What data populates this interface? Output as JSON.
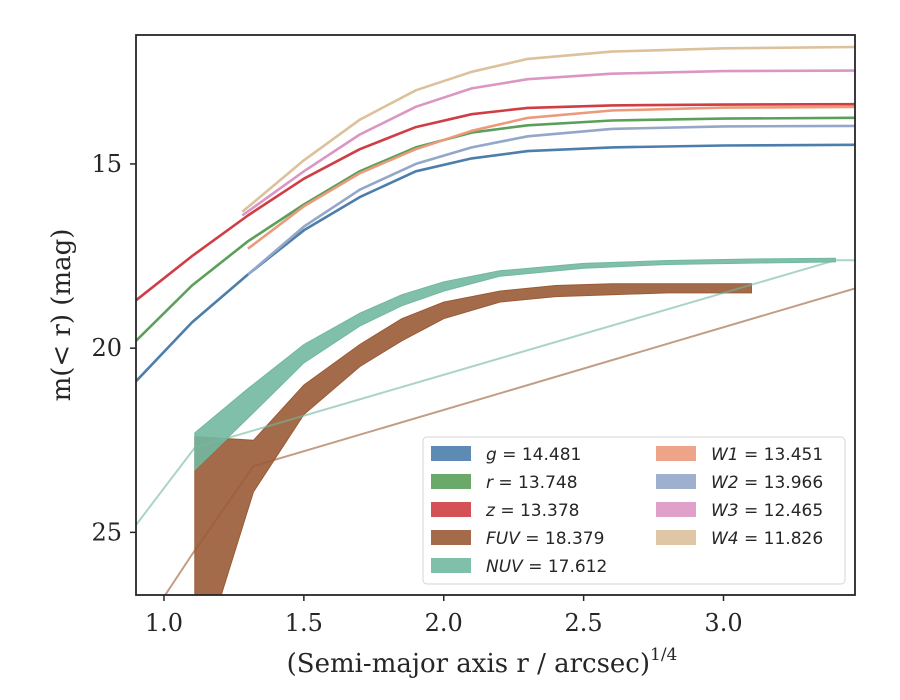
{
  "chart_data": {
    "type": "line",
    "xlabel": "(Semi-major axis r / arcsec)",
    "xlabel_exponent": "1/4",
    "ylabel": "m(< r) (mag)",
    "xlim": [
      0.9,
      3.47
    ],
    "ylim": [
      26.7,
      11.5
    ],
    "y_inverted": true,
    "grid": false,
    "legend_position": "lower-right",
    "x_ticks": [
      "1.0",
      "1.5",
      "2.0",
      "2.5",
      "3.0"
    ],
    "x_tick_values": [
      1.0,
      1.5,
      2.0,
      2.5,
      3.0
    ],
    "y_ticks": [
      "15",
      "20",
      "25"
    ],
    "y_tick_values": [
      15,
      20,
      25
    ],
    "series": [
      {
        "name": "g = 14.481",
        "prefix": "g",
        "value": "14.481",
        "color": "#4c7eab",
        "asym": 14.481,
        "x": [
          0.9,
          1.1,
          1.3,
          1.5,
          1.7,
          1.9,
          2.1,
          2.3,
          2.6,
          3.0,
          3.47
        ],
        "y": [
          20.9,
          19.3,
          18.0,
          16.8,
          15.9,
          15.2,
          14.85,
          14.65,
          14.55,
          14.5,
          14.481
        ],
        "band": 0.06
      },
      {
        "name": "r = 13.748",
        "prefix": "r",
        "value": "13.748",
        "color": "#5aa05a",
        "asym": 13.748,
        "x": [
          0.9,
          1.1,
          1.3,
          1.5,
          1.7,
          1.9,
          2.1,
          2.3,
          2.6,
          3.0,
          3.47
        ],
        "y": [
          19.8,
          18.3,
          17.1,
          16.1,
          15.2,
          14.55,
          14.15,
          13.95,
          13.82,
          13.77,
          13.748
        ],
        "band": 0.06
      },
      {
        "name": "z = 13.378",
        "prefix": "z",
        "value": "13.378",
        "color": "#cf3e44",
        "asym": 13.378,
        "x": [
          0.9,
          1.1,
          1.3,
          1.5,
          1.7,
          1.9,
          2.1,
          2.3,
          2.6,
          3.0,
          3.47
        ],
        "y": [
          18.7,
          17.5,
          16.4,
          15.4,
          14.6,
          14.0,
          13.65,
          13.48,
          13.41,
          13.39,
          13.378
        ],
        "band": 0.06
      },
      {
        "name": "W1 = 13.451",
        "prefix": "W1",
        "value": "13.451",
        "color": "#eb9a7b",
        "asym": 13.451,
        "x": [
          1.3,
          1.5,
          1.7,
          1.9,
          2.1,
          2.3,
          2.6,
          3.0,
          3.47
        ],
        "y": [
          17.3,
          16.15,
          15.25,
          14.6,
          14.1,
          13.75,
          13.55,
          13.47,
          13.451
        ],
        "band": 0.06
      },
      {
        "name": "W2 = 13.966",
        "prefix": "W2",
        "value": "13.966",
        "color": "#95a7c9",
        "asym": 13.966,
        "x": [
          1.3,
          1.5,
          1.7,
          1.9,
          2.1,
          2.3,
          2.6,
          3.0,
          3.47
        ],
        "y": [
          18.0,
          16.7,
          15.7,
          15.0,
          14.55,
          14.25,
          14.05,
          13.98,
          13.966
        ],
        "band": 0.06
      },
      {
        "name": "W3 = 12.465",
        "prefix": "W3",
        "value": "12.465",
        "color": "#dc96c4",
        "asym": 12.465,
        "x": [
          1.28,
          1.5,
          1.7,
          1.9,
          2.1,
          2.3,
          2.6,
          3.0,
          3.47
        ],
        "y": [
          16.4,
          15.2,
          14.2,
          13.45,
          12.95,
          12.7,
          12.55,
          12.48,
          12.465
        ],
        "band": 0.06
      },
      {
        "name": "W4 = 11.826",
        "prefix": "W4",
        "value": "11.826",
        "color": "#dcc19b",
        "asym": 11.826,
        "x": [
          1.28,
          1.5,
          1.7,
          1.9,
          2.1,
          2.3,
          2.6,
          3.0,
          3.47
        ],
        "y": [
          16.3,
          14.9,
          13.8,
          13.0,
          12.5,
          12.15,
          11.95,
          11.86,
          11.826
        ],
        "band": 0.06
      },
      {
        "name": "FUV = 18.379",
        "prefix": "FUV",
        "value": "18.379",
        "color": "#9a5b36",
        "asym": 18.379,
        "x": [
          1.11,
          1.32,
          1.5,
          1.7,
          1.85,
          2.0,
          2.2,
          2.4,
          2.6,
          2.8,
          3.1
        ],
        "y": [
          29.0,
          23.2,
          21.4,
          20.2,
          19.5,
          18.95,
          18.6,
          18.45,
          18.4,
          18.38,
          18.379
        ],
        "y_hi": [
          22.4,
          22.5,
          21.0,
          19.9,
          19.2,
          18.75,
          18.45,
          18.3,
          18.25,
          18.25,
          18.25
        ],
        "y_lo": [
          29.0,
          23.9,
          21.8,
          20.5,
          19.8,
          19.2,
          18.75,
          18.6,
          18.55,
          18.5,
          18.5
        ],
        "extension_x": [
          0.9,
          1.1,
          1.32,
          3.47
        ],
        "extension_y": [
          27.9,
          25.6,
          23.2,
          18.379
        ]
      },
      {
        "name": "NUV = 17.612",
        "prefix": "NUV",
        "value": "17.612",
        "color": "#72b8a0",
        "asym": 17.612,
        "x": [
          1.11,
          1.3,
          1.5,
          1.7,
          1.85,
          2.0,
          2.2,
          2.5,
          2.8,
          3.1,
          3.4
        ],
        "y": [
          22.7,
          21.4,
          20.1,
          19.2,
          18.7,
          18.3,
          17.95,
          17.75,
          17.67,
          17.63,
          17.612
        ],
        "y_hi": [
          22.3,
          21.1,
          19.9,
          19.05,
          18.55,
          18.2,
          17.9,
          17.7,
          17.62,
          17.58,
          17.56
        ],
        "y_lo": [
          23.3,
          21.9,
          20.4,
          19.4,
          18.85,
          18.45,
          18.05,
          17.83,
          17.73,
          17.69,
          17.66
        ],
        "extension_x": [
          0.9,
          1.11,
          3.4,
          3.47
        ],
        "extension_y": [
          24.8,
          22.7,
          17.612,
          17.612
        ]
      }
    ],
    "legend_order": [
      "g = 14.481",
      "r = 13.748",
      "z = 13.378",
      "FUV = 18.379",
      "NUV = 17.612",
      "W1 = 13.451",
      "W2 = 13.966",
      "W3 = 12.465",
      "W4 = 11.826"
    ]
  }
}
